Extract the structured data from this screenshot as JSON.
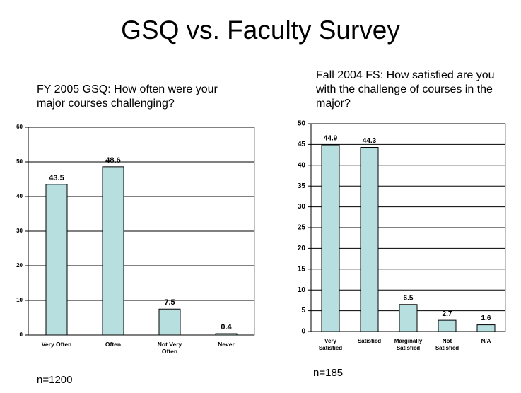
{
  "title": "GSQ vs. Faculty Survey",
  "chart_data": [
    {
      "type": "bar",
      "title": "FY 2005 GSQ: How often were your major courses challenging?",
      "categories": [
        "Very Often",
        "Often",
        "Not Very Often",
        "Never"
      ],
      "values": [
        43.5,
        48.6,
        7.5,
        0.4
      ],
      "color": "#b7dfe0",
      "ylim": [
        0,
        60
      ],
      "yticks": [
        0,
        10,
        20,
        30,
        40,
        50,
        60
      ],
      "grid": true,
      "note": "n=1200"
    },
    {
      "type": "bar",
      "title": "Fall 2004 FS: How satisfied are you with the challenge of courses in the major?",
      "categories": [
        "Very Satisfied",
        "Satisfied",
        "Marginally Satisfied",
        "Not Satisfied",
        "N/A"
      ],
      "values": [
        44.9,
        44.3,
        6.5,
        2.7,
        1.6
      ],
      "color": "#b7dfe0",
      "ylim": [
        0,
        50
      ],
      "yticks": [
        0,
        5,
        10,
        15,
        20,
        25,
        30,
        35,
        40,
        45,
        50
      ],
      "grid": true,
      "note": "n=185"
    }
  ]
}
